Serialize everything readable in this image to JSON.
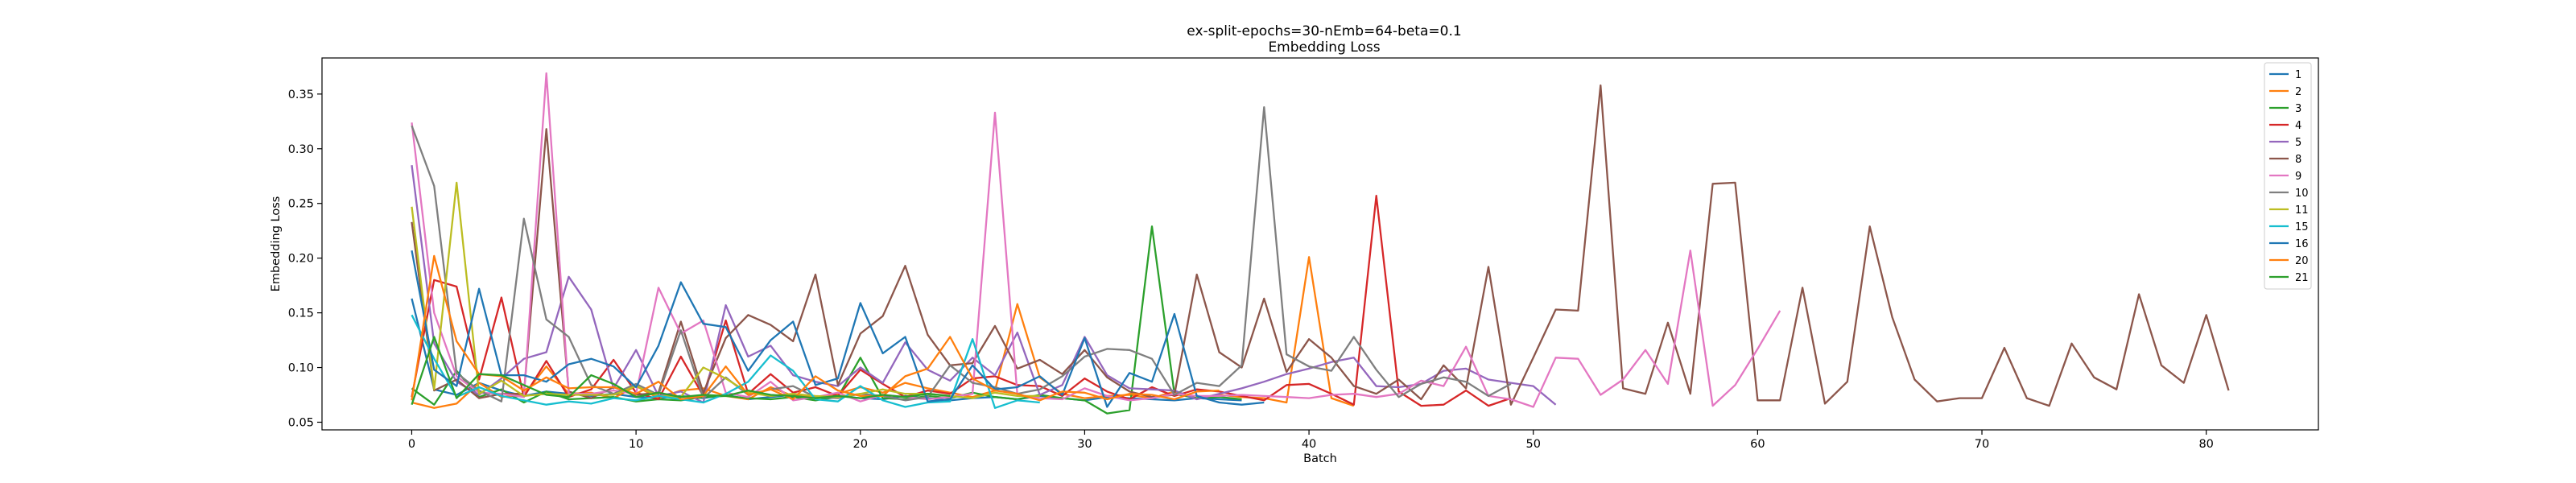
{
  "chart_data": {
    "type": "line",
    "title": "ex-split-epochs=30-nEmb=64-beta=0.1",
    "subtitle": "Embedding Loss",
    "xlabel": "Batch",
    "ylabel": "Embedding Loss",
    "xlim": [
      -4,
      85
    ],
    "ylim": [
      0.043,
      0.383
    ],
    "xticks": [
      0,
      10,
      20,
      30,
      40,
      50,
      60,
      70,
      80
    ],
    "yticks": [
      0.05,
      0.1,
      0.15,
      0.2,
      0.25,
      0.3,
      0.35
    ],
    "ytick_labels": [
      "0.05",
      "0.10",
      "0.15",
      "0.20",
      "0.25",
      "0.30",
      "0.35"
    ],
    "grid": false,
    "legend_position": "top-right",
    "series": [
      {
        "name": "1",
        "color": "#1f77b4",
        "values": [
          0.163,
          0.08,
          0.075,
          0.086,
          0.079,
          0.074,
          0.078,
          0.076,
          0.074,
          0.076,
          0.073,
          0.072,
          0.074,
          0.072,
          0.075,
          0.071,
          0.073,
          0.075,
          0.073,
          0.074,
          0.072,
          0.071,
          0.074,
          0.072,
          0.07,
          0.072,
          0.073,
          0.071,
          0.074,
          0.072,
          0.07,
          0.073,
          0.072,
          0.071,
          0.07,
          0.072,
          0.071,
          0.07
        ]
      },
      {
        "name": "2",
        "color": "#ff7f0e",
        "values": [
          0.068,
          0.063,
          0.067,
          0.086,
          0.073,
          0.075,
          0.101,
          0.076,
          0.077,
          0.072,
          0.083,
          0.072,
          0.079,
          0.081,
          0.074,
          0.071,
          0.082,
          0.074,
          0.073,
          0.076,
          0.082,
          0.077,
          0.086,
          0.081,
          0.077,
          0.073,
          0.079,
          0.158,
          0.091,
          0.076,
          0.072,
          0.074,
          0.075,
          0.072,
          0.078,
          0.072,
          0.075,
          0.073,
          0.072,
          0.068,
          0.201,
          0.072,
          0.065
        ]
      },
      {
        "name": "3",
        "color": "#2ca02c",
        "values": [
          0.081,
          0.066,
          0.097,
          0.073,
          0.08,
          0.068,
          0.078,
          0.071,
          0.072,
          0.073,
          0.069,
          0.071,
          0.07,
          0.073,
          0.074,
          0.072,
          0.071,
          0.073,
          0.07,
          0.073,
          0.109,
          0.072,
          0.071,
          0.074,
          0.072,
          0.077,
          0.073,
          0.071,
          0.075,
          0.072,
          0.07,
          0.058,
          0.061,
          0.229,
          0.076,
          0.072,
          0.073,
          0.071
        ]
      },
      {
        "name": "4",
        "color": "#d62728",
        "values": [
          0.073,
          0.18,
          0.174,
          0.089,
          0.164,
          0.073,
          0.106,
          0.073,
          0.08,
          0.107,
          0.077,
          0.071,
          0.11,
          0.074,
          0.143,
          0.076,
          0.094,
          0.077,
          0.082,
          0.074,
          0.098,
          0.085,
          0.073,
          0.079,
          0.076,
          0.09,
          0.092,
          0.084,
          0.083,
          0.074,
          0.09,
          0.078,
          0.071,
          0.082,
          0.074,
          0.08,
          0.078,
          0.074,
          0.07,
          0.084,
          0.085,
          0.076,
          0.066,
          0.257,
          0.078,
          0.065,
          0.066,
          0.079,
          0.065,
          0.072
        ]
      },
      {
        "name": "5",
        "color": "#9467bd",
        "values": [
          0.285,
          0.122,
          0.087,
          0.075,
          0.09,
          0.108,
          0.114,
          0.183,
          0.153,
          0.081,
          0.116,
          0.074,
          0.078,
          0.068,
          0.157,
          0.11,
          0.12,
          0.093,
          0.087,
          0.083,
          0.1,
          0.086,
          0.123,
          0.098,
          0.088,
          0.109,
          0.093,
          0.132,
          0.075,
          0.084,
          0.128,
          0.093,
          0.081,
          0.08,
          0.079,
          0.071,
          0.076,
          0.081,
          0.087,
          0.094,
          0.099,
          0.105,
          0.109,
          0.083,
          0.082,
          0.085,
          0.097,
          0.099,
          0.089,
          0.086,
          0.083,
          0.066
        ]
      },
      {
        "name": "8",
        "color": "#8c564b",
        "values": [
          0.233,
          0.079,
          0.089,
          0.072,
          0.076,
          0.076,
          0.318,
          0.078,
          0.072,
          0.082,
          0.075,
          0.077,
          0.142,
          0.077,
          0.127,
          0.148,
          0.139,
          0.124,
          0.185,
          0.084,
          0.131,
          0.147,
          0.193,
          0.13,
          0.102,
          0.104,
          0.138,
          0.099,
          0.107,
          0.094,
          0.116,
          0.091,
          0.078,
          0.073,
          0.075,
          0.185,
          0.114,
          0.1,
          0.163,
          0.096,
          0.126,
          0.109,
          0.083,
          0.076,
          0.089,
          0.071,
          0.102,
          0.081,
          0.192,
          0.066,
          0.109,
          0.153,
          0.152,
          0.358,
          0.081,
          0.076,
          0.141,
          0.076,
          0.268,
          0.269,
          0.07,
          0.07,
          0.173,
          0.067,
          0.087,
          0.229,
          0.146,
          0.089,
          0.069,
          0.072,
          0.072,
          0.118,
          0.072,
          0.065,
          0.122,
          0.091,
          0.08,
          0.167,
          0.102,
          0.086,
          0.148,
          0.079
        ]
      },
      {
        "name": "9",
        "color": "#e377c2",
        "values": [
          0.324,
          0.15,
          0.092,
          0.077,
          0.076,
          0.073,
          0.369,
          0.076,
          0.076,
          0.079,
          0.076,
          0.173,
          0.131,
          0.143,
          0.077,
          0.073,
          0.087,
          0.07,
          0.073,
          0.077,
          0.069,
          0.075,
          0.073,
          0.071,
          0.073,
          0.076,
          0.333,
          0.075,
          0.072,
          0.071,
          0.081,
          0.074,
          0.07,
          0.072,
          0.076,
          0.074,
          0.074,
          0.075,
          0.074,
          0.073,
          0.072,
          0.075,
          0.076,
          0.073,
          0.076,
          0.088,
          0.083,
          0.119,
          0.074,
          0.071,
          0.064,
          0.109,
          0.108,
          0.075,
          0.089,
          0.116,
          0.085,
          0.207,
          0.065,
          0.084,
          0.117,
          0.152
        ]
      },
      {
        "name": "10",
        "color": "#7f7f7f",
        "values": [
          0.321,
          0.266,
          0.095,
          0.079,
          0.069,
          0.236,
          0.144,
          0.128,
          0.084,
          0.076,
          0.085,
          0.075,
          0.134,
          0.072,
          0.091,
          0.075,
          0.08,
          0.083,
          0.073,
          0.072,
          0.076,
          0.074,
          0.07,
          0.073,
          0.102,
          0.086,
          0.082,
          0.076,
          0.08,
          0.092,
          0.11,
          0.117,
          0.116,
          0.108,
          0.075,
          0.086,
          0.083,
          0.102,
          0.338,
          0.112,
          0.101,
          0.097,
          0.128,
          0.098,
          0.073,
          0.085,
          0.091,
          0.087,
          0.074,
          0.085
        ]
      },
      {
        "name": "11",
        "color": "#bcbd22",
        "values": [
          0.247,
          0.08,
          0.269,
          0.076,
          0.088,
          0.074,
          0.076,
          0.075,
          0.075,
          0.075,
          0.083,
          0.074,
          0.073,
          0.1,
          0.09,
          0.077,
          0.074,
          0.076,
          0.074,
          0.073,
          0.076,
          0.08,
          0.076,
          0.076,
          0.074,
          0.072,
          0.077,
          0.074,
          0.074
        ]
      },
      {
        "name": "15",
        "color": "#17becf",
        "values": [
          0.148,
          0.108,
          0.073,
          0.082,
          0.074,
          0.07,
          0.066,
          0.069,
          0.067,
          0.072,
          0.07,
          0.074,
          0.071,
          0.068,
          0.076,
          0.087,
          0.111,
          0.097,
          0.071,
          0.069,
          0.083,
          0.07,
          0.064,
          0.068,
          0.069,
          0.126,
          0.063,
          0.07,
          0.068
        ]
      },
      {
        "name": "16",
        "color": "#1f77b4",
        "values": [
          0.207,
          0.098,
          0.083,
          0.172,
          0.093,
          0.093,
          0.087,
          0.103,
          0.108,
          0.101,
          0.082,
          0.12,
          0.178,
          0.14,
          0.137,
          0.097,
          0.125,
          0.142,
          0.084,
          0.09,
          0.159,
          0.113,
          0.128,
          0.069,
          0.071,
          0.102,
          0.08,
          0.082,
          0.092,
          0.075,
          0.127,
          0.064,
          0.095,
          0.087,
          0.149,
          0.074,
          0.068,
          0.066,
          0.068
        ]
      },
      {
        "name": "20",
        "color": "#ff7f0e",
        "values": [
          0.07,
          0.202,
          0.124,
          0.094,
          0.092,
          0.079,
          0.091,
          0.081,
          0.082,
          0.082,
          0.076,
          0.087,
          0.071,
          0.074,
          0.101,
          0.075,
          0.08,
          0.071,
          0.092,
          0.079,
          0.074,
          0.074,
          0.092,
          0.099,
          0.128,
          0.09,
          0.079,
          0.076,
          0.07,
          0.078,
          0.077,
          0.071,
          0.076,
          0.075,
          0.071,
          0.078,
          0.079
        ]
      },
      {
        "name": "21",
        "color": "#2ca02c",
        "values": [
          0.066,
          0.128,
          0.072,
          0.094,
          0.093,
          0.084,
          0.075,
          0.073,
          0.093,
          0.085,
          0.073,
          0.077,
          0.073,
          0.075,
          0.074,
          0.079,
          0.075,
          0.074,
          0.072,
          0.074,
          0.072,
          0.075,
          0.073,
          0.076,
          0.074
        ]
      }
    ]
  }
}
